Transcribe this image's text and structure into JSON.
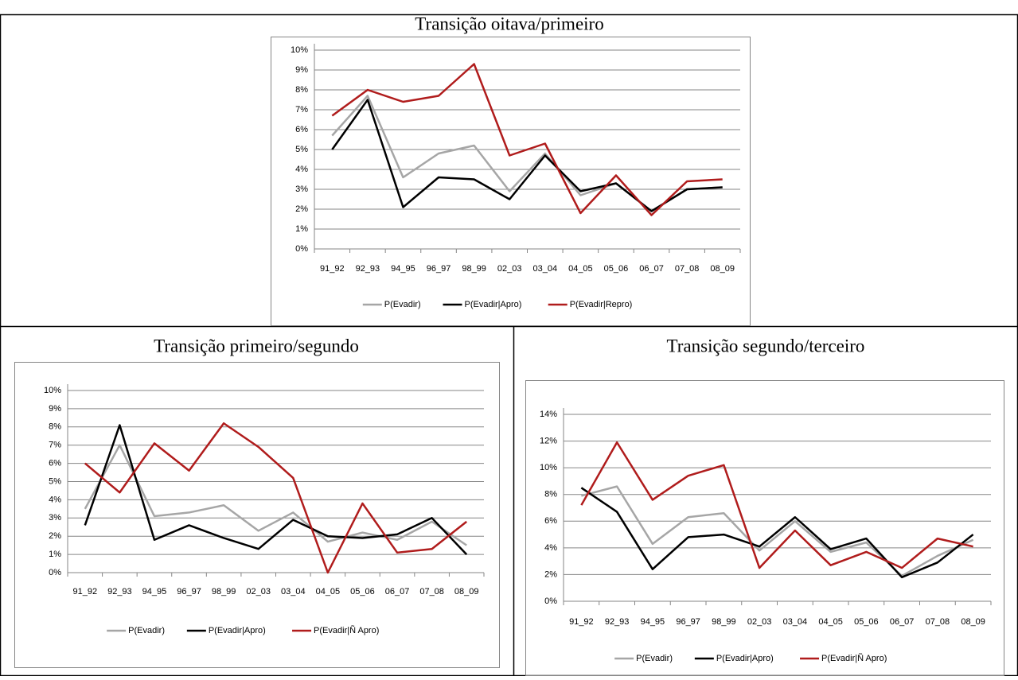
{
  "chart_data": [
    {
      "type": "line",
      "title": "Transição oitava/primeiro",
      "categories": [
        "91_92",
        "92_93",
        "94_95",
        "96_97",
        "98_99",
        "02_03",
        "03_04",
        "04_05",
        "05_06",
        "06_07",
        "07_08",
        "08_09"
      ],
      "ylim": [
        0,
        10
      ],
      "yticks": [
        {
          "value": 0,
          "label": "0%"
        },
        {
          "value": 1,
          "label": "1%"
        },
        {
          "value": 2,
          "label": "2%"
        },
        {
          "value": 3,
          "label": "3%"
        },
        {
          "value": 4,
          "label": "4%"
        },
        {
          "value": 5,
          "label": "5%"
        },
        {
          "value": 6,
          "label": "6%"
        },
        {
          "value": 7,
          "label": "7%"
        },
        {
          "value": 8,
          "label": "8%"
        },
        {
          "value": 9,
          "label": "9%"
        },
        {
          "value": 10,
          "label": "10%"
        }
      ],
      "grid": true,
      "legend": "bottom",
      "series": [
        {
          "name": "P(Evadir)",
          "color": "#a6a6a6",
          "values": [
            5.7,
            7.7,
            3.6,
            4.8,
            5.2,
            2.9,
            4.8,
            2.7,
            3.3,
            1.9,
            3.0,
            3.1
          ]
        },
        {
          "name": "P(Evadir|Apro)",
          "color": "#000000",
          "values": [
            5.0,
            7.5,
            2.1,
            3.6,
            3.5,
            2.5,
            4.7,
            2.9,
            3.3,
            1.9,
            3.0,
            3.1
          ]
        },
        {
          "name": "P(Evadir|Repro)",
          "color": "#b01c1c",
          "values": [
            6.7,
            8.0,
            7.4,
            7.7,
            9.3,
            4.7,
            5.3,
            1.8,
            3.7,
            1.7,
            3.4,
            3.5
          ]
        }
      ]
    },
    {
      "type": "line",
      "title": "Transição primeiro/segundo",
      "categories": [
        "91_92",
        "92_93",
        "94_95",
        "96_97",
        "98_99",
        "02_03",
        "03_04",
        "04_05",
        "05_06",
        "06_07",
        "07_08",
        "08_09"
      ],
      "ylim": [
        0,
        10
      ],
      "yticks": [
        {
          "value": 0,
          "label": "0%"
        },
        {
          "value": 1,
          "label": "1%"
        },
        {
          "value": 2,
          "label": "2%"
        },
        {
          "value": 3,
          "label": "3%"
        },
        {
          "value": 4,
          "label": "4%"
        },
        {
          "value": 5,
          "label": "5%"
        },
        {
          "value": 6,
          "label": "6%"
        },
        {
          "value": 7,
          "label": "7%"
        },
        {
          "value": 8,
          "label": "8%"
        },
        {
          "value": 9,
          "label": "9%"
        },
        {
          "value": 10,
          "label": "10%"
        }
      ],
      "grid": true,
      "legend": "bottom",
      "series": [
        {
          "name": "P(Evadir)",
          "color": "#a6a6a6",
          "values": [
            3.5,
            7.0,
            3.1,
            3.3,
            3.7,
            2.3,
            3.3,
            1.7,
            2.2,
            1.8,
            2.8,
            1.5
          ]
        },
        {
          "name": "P(Evadir|Apro)",
          "color": "#000000",
          "values": [
            2.6,
            8.1,
            1.8,
            2.6,
            1.9,
            1.3,
            2.9,
            2.0,
            1.9,
            2.1,
            3.0,
            1.0
          ]
        },
        {
          "name": "P(Evadir|Ñ Apro)",
          "color": "#b01c1c",
          "values": [
            6.0,
            4.4,
            7.1,
            5.6,
            8.2,
            6.9,
            5.2,
            0.0,
            3.8,
            1.1,
            1.3,
            2.8
          ]
        }
      ]
    },
    {
      "type": "line",
      "title": "Transição segundo/terceiro",
      "categories": [
        "91_92",
        "92_93",
        "94_95",
        "96_97",
        "98_99",
        "02_03",
        "03_04",
        "04_05",
        "05_06",
        "06_07",
        "07_08",
        "08_09"
      ],
      "ylim": [
        0,
        14
      ],
      "yticks": [
        {
          "value": 0,
          "label": "0%"
        },
        {
          "value": 2,
          "label": "2%"
        },
        {
          "value": 4,
          "label": "4%"
        },
        {
          "value": 6,
          "label": "6%"
        },
        {
          "value": 8,
          "label": "8%"
        },
        {
          "value": 10,
          "label": "10%"
        },
        {
          "value": 12,
          "label": "12%"
        },
        {
          "value": 14,
          "label": "14%"
        }
      ],
      "grid": true,
      "legend": "bottom",
      "series": [
        {
          "name": "P(Evadir)",
          "color": "#a6a6a6",
          "values": [
            7.9,
            8.6,
            4.3,
            6.3,
            6.6,
            3.8,
            6.0,
            3.7,
            4.4,
            1.9,
            3.4,
            4.6
          ]
        },
        {
          "name": "P(Evadir|Apro)",
          "color": "#000000",
          "values": [
            8.5,
            6.7,
            2.4,
            4.8,
            5.0,
            4.1,
            6.3,
            3.9,
            4.7,
            1.8,
            2.9,
            5.0
          ]
        },
        {
          "name": "P(Evadir|Ñ Apro)",
          "color": "#b01c1c",
          "values": [
            7.2,
            11.9,
            7.6,
            9.4,
            10.2,
            2.5,
            5.3,
            2.7,
            3.7,
            2.5,
            4.7,
            4.1
          ]
        }
      ]
    }
  ]
}
